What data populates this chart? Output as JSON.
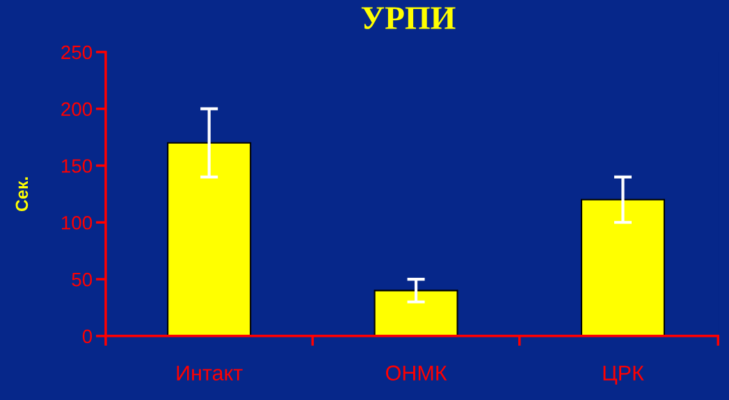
{
  "chart_data": {
    "type": "bar",
    "title": "УРПИ",
    "ylabel": "Сек.",
    "categories": [
      "Интакт",
      "ОНМК",
      "ЦРК"
    ],
    "series": [
      {
        "color": "#ffff00",
        "values": [
          170,
          40,
          120
        ],
        "errors": [
          30,
          10,
          20
        ]
      }
    ],
    "ylim": [
      0,
      250
    ],
    "yticks": [
      0,
      50,
      100,
      150,
      200,
      250
    ],
    "grid": false,
    "legend": false
  }
}
